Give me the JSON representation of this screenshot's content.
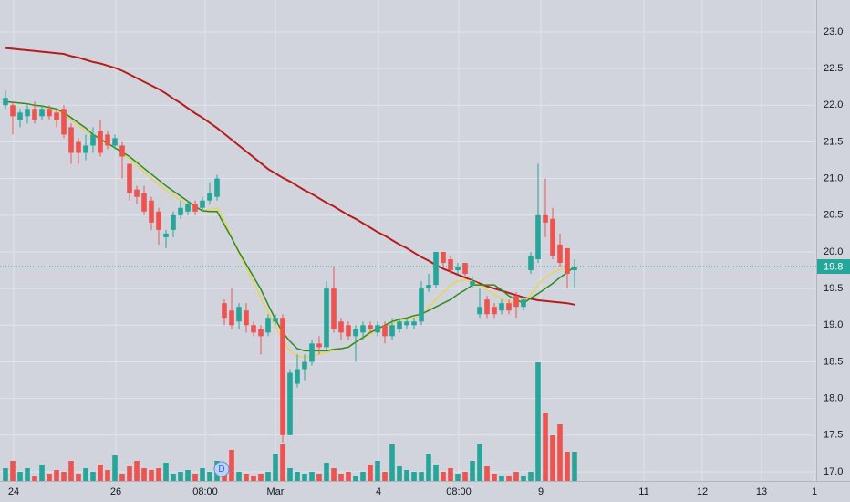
{
  "chart_data": {
    "type": "candlestick",
    "open": [
      22.0,
      22.0,
      21.8,
      21.85,
      21.95,
      21.85,
      21.95,
      21.9,
      21.95,
      21.7,
      21.5,
      21.35,
      21.45,
      21.65,
      21.6,
      21.45,
      21.45,
      21.2,
      20.85,
      20.8,
      20.7,
      20.55,
      20.2,
      20.3,
      20.5,
      20.55,
      20.65,
      20.6,
      20.7,
      20.75,
      19.3,
      19.2,
      19.05,
      19.2,
      19.0,
      18.95,
      18.9,
      19.05,
      19.1,
      17.5,
      18.2,
      18.4,
      18.5,
      18.75,
      18.7,
      19.5,
      19.05,
      19.0,
      18.85,
      18.9,
      19.0,
      18.9,
      19.0,
      18.85,
      18.95,
      19.0,
      19.0,
      19.05,
      19.5,
      19.55,
      20.0,
      19.9,
      19.75,
      19.85,
      19.55,
      19.15,
      19.35,
      19.25,
      19.2,
      19.3,
      19.4,
      19.25,
      19.75,
      19.9,
      20.5,
      20.45,
      20.1,
      20.05,
      19.75
    ],
    "high": [
      22.2,
      22.05,
      21.95,
      22.0,
      22.05,
      22.0,
      22.0,
      21.95,
      22.0,
      21.75,
      21.55,
      21.6,
      21.7,
      21.8,
      21.65,
      21.6,
      21.5,
      21.2,
      20.9,
      20.9,
      20.75,
      20.6,
      20.3,
      20.55,
      20.7,
      20.7,
      20.7,
      20.75,
      20.95,
      21.05,
      19.35,
      19.5,
      19.3,
      19.3,
      19.05,
      19.0,
      19.15,
      19.15,
      19.15,
      18.4,
      18.6,
      18.6,
      18.8,
      18.85,
      19.6,
      19.8,
      19.1,
      19.05,
      19.0,
      19.05,
      19.05,
      19.05,
      19.05,
      19.1,
      19.1,
      19.1,
      19.1,
      19.6,
      19.7,
      20.0,
      20.0,
      19.95,
      19.85,
      19.85,
      19.65,
      19.5,
      19.4,
      19.3,
      19.35,
      19.35,
      19.45,
      19.4,
      20.0,
      21.2,
      21.0,
      20.6,
      20.25,
      20.05,
      19.9
    ],
    "low": [
      21.95,
      21.6,
      21.7,
      21.75,
      21.75,
      21.8,
      21.8,
      21.7,
      21.55,
      21.2,
      21.2,
      21.25,
      21.35,
      21.3,
      21.4,
      21.4,
      21.0,
      20.7,
      20.65,
      20.5,
      20.3,
      20.1,
      20.05,
      20.2,
      20.45,
      20.5,
      20.5,
      20.55,
      20.65,
      20.7,
      19.0,
      18.95,
      18.95,
      18.9,
      18.85,
      18.6,
      18.85,
      19.0,
      17.4,
      17.5,
      18.15,
      18.25,
      18.45,
      18.6,
      18.65,
      18.9,
      18.8,
      18.8,
      18.5,
      18.8,
      18.9,
      18.85,
      18.75,
      18.8,
      18.9,
      18.95,
      18.95,
      19.0,
      19.45,
      19.5,
      19.8,
      19.7,
      19.7,
      19.65,
      19.5,
      19.1,
      19.1,
      19.1,
      19.15,
      19.15,
      19.1,
      19.2,
      19.7,
      19.85,
      20.2,
      19.9,
      19.8,
      19.5,
      19.5
    ],
    "close": [
      22.1,
      21.85,
      21.9,
      21.95,
      21.8,
      21.95,
      21.85,
      21.8,
      21.6,
      21.35,
      21.35,
      21.45,
      21.6,
      21.35,
      21.45,
      21.55,
      21.3,
      20.8,
      20.75,
      20.55,
      20.4,
      20.3,
      20.25,
      20.5,
      20.6,
      20.65,
      20.55,
      20.7,
      20.8,
      21.0,
      19.1,
      19.0,
      19.25,
      19.0,
      18.9,
      18.85,
      19.1,
      19.1,
      17.5,
      18.35,
      18.4,
      18.5,
      18.75,
      18.7,
      19.5,
      18.95,
      18.9,
      18.85,
      18.95,
      19.0,
      18.95,
      19.0,
      18.85,
      19.0,
      19.05,
      19.05,
      19.05,
      19.5,
      19.55,
      20.0,
      19.85,
      19.75,
      19.8,
      19.7,
      19.6,
      19.25,
      19.15,
      19.15,
      19.3,
      19.2,
      19.25,
      19.35,
      19.95,
      20.5,
      20.4,
      19.95,
      19.85,
      19.7,
      19.8
    ],
    "volume": [
      14,
      22,
      10,
      14,
      5,
      18,
      8,
      12,
      10,
      22,
      8,
      14,
      10,
      18,
      12,
      28,
      8,
      16,
      22,
      14,
      12,
      14,
      20,
      8,
      10,
      12,
      8,
      14,
      10,
      22,
      14,
      34,
      10,
      8,
      6,
      8,
      10,
      30,
      40,
      14,
      10,
      8,
      10,
      8,
      20,
      14,
      8,
      10,
      6,
      10,
      18,
      22,
      10,
      40,
      16,
      12,
      10,
      10,
      30,
      18,
      10,
      14,
      8,
      10,
      22,
      40,
      16,
      8,
      6,
      6,
      10,
      6,
      10,
      130,
      75,
      50,
      62,
      32,
      32
    ],
    "volume_lim": [
      0,
      150
    ],
    "up_color": "#26a69a",
    "down_color": "#ef5350",
    "series": [
      {
        "color": "#b71c1c",
        "values": [
          22.78,
          22.77,
          22.76,
          22.75,
          22.74,
          22.73,
          22.72,
          22.71,
          22.7,
          22.67,
          22.65,
          22.62,
          22.59,
          22.57,
          22.54,
          22.51,
          22.47,
          22.42,
          22.37,
          22.32,
          22.27,
          22.22,
          22.16,
          22.09,
          22.03,
          21.96,
          21.89,
          21.83,
          21.76,
          21.69,
          21.61,
          21.53,
          21.45,
          21.37,
          21.29,
          21.21,
          21.13,
          21.07,
          21.01,
          20.96,
          20.9,
          20.84,
          20.79,
          20.73,
          20.67,
          20.62,
          20.56,
          20.5,
          20.45,
          20.39,
          20.33,
          20.27,
          20.22,
          20.16,
          20.1,
          20.05,
          19.99,
          19.93,
          19.88,
          19.82,
          19.77,
          19.73,
          19.69,
          19.65,
          19.61,
          19.57,
          19.53,
          19.5,
          19.47,
          19.44,
          19.41,
          19.38,
          19.36,
          19.34,
          19.33,
          19.32,
          19.31,
          19.3,
          19.28
        ]
      },
      {
        "color": "#e8d45c",
        "values": [
          22.05,
          22.04,
          22.03,
          22.02,
          22.0,
          21.98,
          21.96,
          21.93,
          21.87,
          21.8,
          21.72,
          21.65,
          21.58,
          21.52,
          21.47,
          21.42,
          21.35,
          21.27,
          21.18,
          21.09,
          21.0,
          20.92,
          20.84,
          20.77,
          20.7,
          20.64,
          20.6,
          20.57,
          20.57,
          20.6,
          20.42,
          20.2,
          19.98,
          19.78,
          19.58,
          19.38,
          19.18,
          18.98,
          18.8,
          18.65,
          18.58,
          18.56,
          18.58,
          18.6,
          18.63,
          18.66,
          18.68,
          18.7,
          18.76,
          18.82,
          18.88,
          18.93,
          18.98,
          19.02,
          19.06,
          19.08,
          19.1,
          19.16,
          19.25,
          19.35,
          19.45,
          19.55,
          19.6,
          19.62,
          19.6,
          19.55,
          19.48,
          19.42,
          19.36,
          19.32,
          19.3,
          19.3,
          19.42,
          19.55,
          19.65,
          19.72,
          19.76,
          19.78,
          19.8
        ]
      },
      {
        "color": "#2e8b1e",
        "values": [
          22.05,
          22.04,
          22.03,
          22.02,
          22.0,
          21.99,
          21.97,
          21.95,
          21.9,
          21.83,
          21.76,
          21.69,
          21.6,
          21.54,
          21.48,
          21.42,
          21.36,
          21.3,
          21.22,
          21.14,
          21.06,
          20.98,
          20.9,
          20.83,
          20.76,
          20.69,
          20.62,
          20.56,
          20.55,
          20.55,
          20.37,
          20.19,
          20.0,
          19.83,
          19.66,
          19.49,
          19.28,
          19.08,
          18.9,
          18.78,
          18.68,
          18.65,
          18.65,
          18.65,
          18.65,
          18.67,
          18.68,
          18.7,
          18.77,
          18.83,
          18.9,
          18.95,
          19.0,
          19.05,
          19.08,
          19.1,
          19.13,
          19.15,
          19.2,
          19.25,
          19.3,
          19.35,
          19.42,
          19.48,
          19.55,
          19.55,
          19.55,
          19.55,
          19.48,
          19.4,
          19.35,
          19.3,
          19.37,
          19.43,
          19.5,
          19.57,
          19.65,
          19.72,
          19.8
        ]
      }
    ],
    "ylim": [
      16.875,
      23.435
    ],
    "yticks": [
      {
        "value": 17,
        "label": "17.0"
      },
      17.5,
      {
        "value": 18,
        "label": "18.0"
      },
      18.5,
      {
        "value": 19,
        "label": "19.0"
      },
      19.5,
      {
        "value": 20,
        "label": "20.0"
      },
      20.5,
      {
        "value": 21,
        "label": "21.0"
      },
      21.5,
      {
        "value": 22,
        "label": "22.0"
      },
      22.5,
      {
        "value": 23,
        "label": "23.0"
      }
    ],
    "xlim": [
      -0.75,
      111.125
    ],
    "xticks": [
      {
        "value": 1.125,
        "label": "24"
      },
      {
        "value": 15.125,
        "label": "26"
      },
      {
        "value": 27.375,
        "label": "08:00"
      },
      {
        "value": 37,
        "label": "Mar"
      },
      {
        "value": 51.125,
        "label": "4"
      },
      {
        "value": 62.125,
        "label": "08:00"
      },
      {
        "value": 73.375,
        "label": "9"
      },
      {
        "value": 87.5,
        "label": "11"
      },
      {
        "value": 95.5,
        "label": "12"
      },
      {
        "value": 103.625,
        "label": "13"
      },
      {
        "value": 110.875,
        "label": "1"
      }
    ],
    "last_price": 19.8,
    "last_color": "#26a69a",
    "badge": "D",
    "badge_x": 29.625,
    "grid": true
  }
}
